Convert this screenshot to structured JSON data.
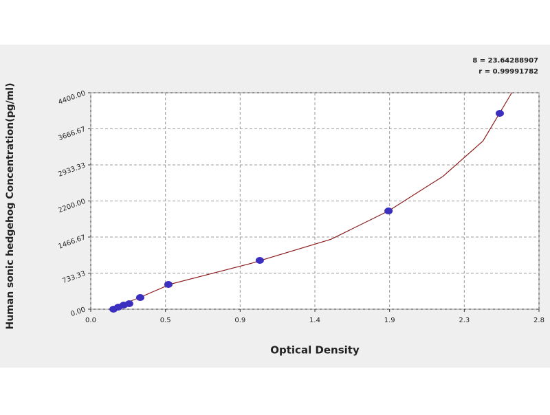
{
  "chart_data": {
    "type": "scatter",
    "x_label": "Optical Density",
    "y_label": "Human sonic hedgehog Concentration(pg/ml)",
    "annotations": [
      "8 = 23.64288907",
      "r = 0.99991782"
    ],
    "x": [
      0.142,
      0.172,
      0.206,
      0.24,
      0.309,
      0.485,
      1.056,
      1.86,
      2.555
    ],
    "series": [
      {
        "color": "#3a2fbf",
        "values": [
          0,
          42,
          84,
          112,
          237,
          503,
          992,
          1997,
          3981
        ]
      }
    ],
    "fit_curve": {
      "color": "#8b1a1a",
      "x": [
        0.12,
        0.3,
        0.5,
        1.0,
        1.5,
        1.86,
        2.2,
        2.45,
        2.63
      ],
      "y": [
        0,
        230,
        510,
        930,
        1420,
        1997,
        2700,
        3420,
        4400
      ]
    },
    "xlim": [
      0,
      2.8
    ],
    "xticks": [
      {
        "value": 0,
        "label": "0.0"
      },
      {
        "value": 0.4667,
        "label": "0.5"
      },
      {
        "value": 0.9333,
        "label": "0.9"
      },
      {
        "value": 1.4,
        "label": "1.4"
      },
      {
        "value": 1.8667,
        "label": "1.9"
      },
      {
        "value": 2.3333,
        "label": "2.3"
      },
      {
        "value": 2.8,
        "label": "2.8"
      }
    ],
    "ylim": [
      0,
      4400
    ],
    "yticks": [
      {
        "value": 0,
        "label": "0.00"
      },
      {
        "value": 733.33,
        "label": "733.33"
      },
      {
        "value": 1466.67,
        "label": "1466.67"
      },
      {
        "value": 2200,
        "label": "2200.00"
      },
      {
        "value": 2933.33,
        "label": "2933.33"
      },
      {
        "value": 3666.67,
        "label": "3666.67"
      },
      {
        "value": 4400,
        "label": "4400.00"
      }
    ],
    "grid": true
  }
}
